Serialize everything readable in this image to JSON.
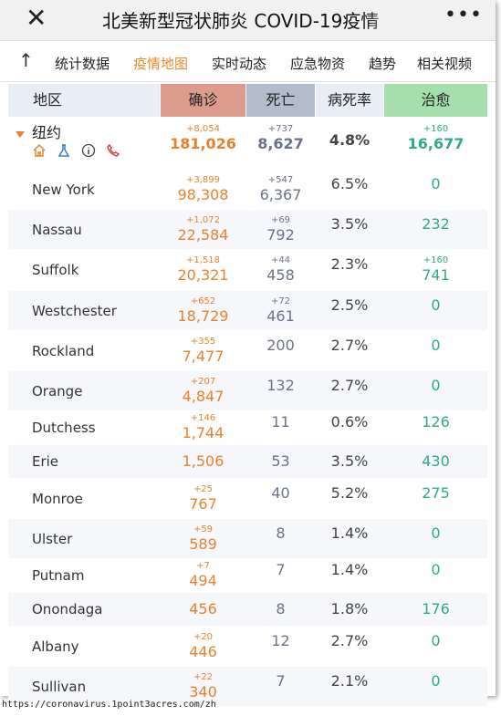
{
  "header": {
    "title": "北美新型冠状肺炎 COVID-19疫情",
    "close_icon": "close-icon",
    "more_icon": "more-icon"
  },
  "tabs": [
    {
      "label": "统计数据",
      "active": false
    },
    {
      "label": "疫情地图",
      "active": true
    },
    {
      "label": "实时动态",
      "active": false
    },
    {
      "label": "应急物资",
      "active": false
    },
    {
      "label": "趋势",
      "active": false
    },
    {
      "label": "相关视频",
      "active": false
    }
  ],
  "table": {
    "columns": [
      "地区",
      "确诊",
      "死亡",
      "病死率",
      "治愈"
    ],
    "summary": {
      "name": "纽约",
      "confirmed": "181,026",
      "confirmed_delta": "+8,054",
      "deaths": "8,627",
      "deaths_delta": "+737",
      "rate": "4.8%",
      "cured": "16,677",
      "cured_delta": "+160",
      "icons": [
        "home-icon",
        "flask-icon",
        "info-icon",
        "phone-icon"
      ]
    },
    "rows": [
      {
        "name": "New York",
        "confirmed": "98,308",
        "confirmed_delta": "+3,899",
        "deaths": "6,367",
        "deaths_delta": "+547",
        "rate": "6.5%",
        "cured": "0",
        "cured_delta": ""
      },
      {
        "name": "Nassau",
        "confirmed": "22,584",
        "confirmed_delta": "+1,072",
        "deaths": "792",
        "deaths_delta": "+69",
        "rate": "3.5%",
        "cured": "232",
        "cured_delta": ""
      },
      {
        "name": "Suffolk",
        "confirmed": "20,321",
        "confirmed_delta": "+1,518",
        "deaths": "458",
        "deaths_delta": "+44",
        "rate": "2.3%",
        "cured": "741",
        "cured_delta": "+160"
      },
      {
        "name": "Westchester",
        "confirmed": "18,729",
        "confirmed_delta": "+652",
        "deaths": "461",
        "deaths_delta": "+72",
        "rate": "2.5%",
        "cured": "0",
        "cured_delta": ""
      },
      {
        "name": "Rockland",
        "confirmed": "7,477",
        "confirmed_delta": "+355",
        "deaths": "200",
        "deaths_delta": "",
        "rate": "2.7%",
        "cured": "0",
        "cured_delta": ""
      },
      {
        "name": "Orange",
        "confirmed": "4,847",
        "confirmed_delta": "+207",
        "deaths": "132",
        "deaths_delta": "",
        "rate": "2.7%",
        "cured": "0",
        "cured_delta": ""
      },
      {
        "name": "Dutchess",
        "confirmed": "1,744",
        "confirmed_delta": "+146",
        "deaths": "11",
        "deaths_delta": "",
        "rate": "0.6%",
        "cured": "126",
        "cured_delta": ""
      },
      {
        "name": "Erie",
        "confirmed": "1,506",
        "confirmed_delta": "",
        "deaths": "53",
        "deaths_delta": "",
        "rate": "3.5%",
        "cured": "430",
        "cured_delta": ""
      },
      {
        "name": "Monroe",
        "confirmed": "767",
        "confirmed_delta": "+25",
        "deaths": "40",
        "deaths_delta": "",
        "rate": "5.2%",
        "cured": "275",
        "cured_delta": ""
      },
      {
        "name": "Ulster",
        "confirmed": "589",
        "confirmed_delta": "+59",
        "deaths": "8",
        "deaths_delta": "",
        "rate": "1.4%",
        "cured": "0",
        "cured_delta": ""
      },
      {
        "name": "Putnam",
        "confirmed": "494",
        "confirmed_delta": "+7",
        "deaths": "7",
        "deaths_delta": "",
        "rate": "1.4%",
        "cured": "0",
        "cured_delta": ""
      },
      {
        "name": "Onondaga",
        "confirmed": "456",
        "confirmed_delta": "",
        "deaths": "8",
        "deaths_delta": "",
        "rate": "1.8%",
        "cured": "176",
        "cured_delta": ""
      },
      {
        "name": "Albany",
        "confirmed": "446",
        "confirmed_delta": "+20",
        "deaths": "12",
        "deaths_delta": "",
        "rate": "2.7%",
        "cured": "0",
        "cured_delta": ""
      },
      {
        "name": "Sullivan",
        "confirmed": "340",
        "confirmed_delta": "+22",
        "deaths": "7",
        "deaths_delta": "",
        "rate": "2.1%",
        "cured": "0",
        "cured_delta": ""
      }
    ]
  },
  "footer": {
    "url": "https://coronavirus.1point3acres.com/zh"
  },
  "colors": {
    "accent": "#e8822f",
    "confirmed_header": "#dd9b8e",
    "death_header": "#b3bccb",
    "cure_header": "#a6dfad",
    "cure_text": "#2eaa8b"
  }
}
